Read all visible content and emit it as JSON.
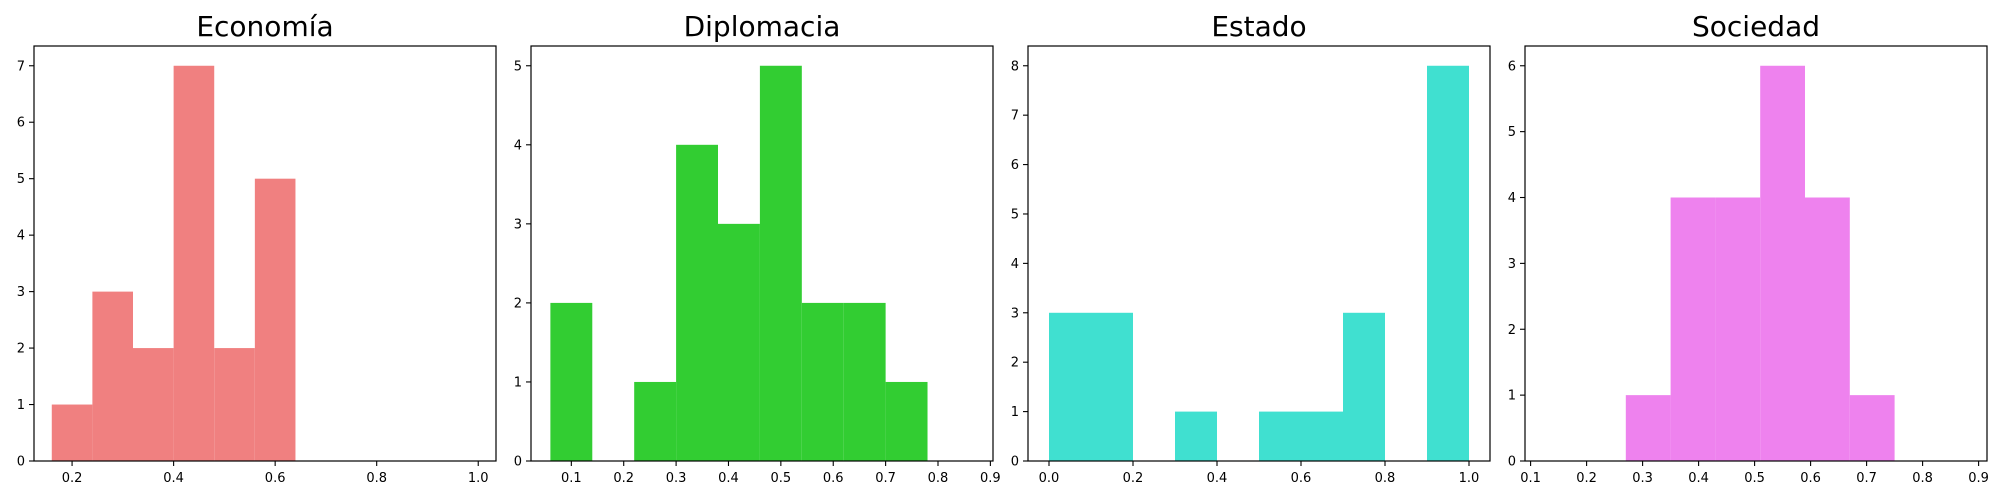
{
  "chart_data": [
    {
      "type": "bar",
      "title": "Economía",
      "color": "#F08080",
      "xlabel": "",
      "ylabel": "",
      "xlim": [
        0.125,
        1.035
      ],
      "ylim": [
        0,
        7.35
      ],
      "xticks": [
        0.2,
        0.4,
        0.6,
        0.8,
        1.0
      ],
      "xtick_labels": [
        "0.2",
        "0.4",
        "0.6",
        "0.8",
        "1.0"
      ],
      "yticks": [
        0,
        1,
        2,
        3,
        4,
        5,
        6,
        7
      ],
      "ytick_labels": [
        "0",
        "1",
        "2",
        "3",
        "4",
        "5",
        "6",
        "7"
      ],
      "bins": [
        {
          "x0": 0.16,
          "x1": 0.24,
          "count": 1
        },
        {
          "x0": 0.24,
          "x1": 0.32,
          "count": 3
        },
        {
          "x0": 0.32,
          "x1": 0.4,
          "count": 2
        },
        {
          "x0": 0.4,
          "x1": 0.48,
          "count": 7
        },
        {
          "x0": 0.48,
          "x1": 0.56,
          "count": 2
        },
        {
          "x0": 0.56,
          "x1": 0.64,
          "count": 5
        }
      ]
    },
    {
      "type": "bar",
      "title": "Diplomacia",
      "color": "#32CD32",
      "xlabel": "",
      "ylabel": "",
      "xlim": [
        0.023,
        0.905
      ],
      "ylim": [
        0,
        5.25
      ],
      "xticks": [
        0.1,
        0.2,
        0.3,
        0.4,
        0.5,
        0.6,
        0.7,
        0.8,
        0.9
      ],
      "xtick_labels": [
        "0.1",
        "0.2",
        "0.3",
        "0.4",
        "0.5",
        "0.6",
        "0.7",
        "0.8",
        "0.9"
      ],
      "yticks": [
        0,
        1,
        2,
        3,
        4,
        5
      ],
      "ytick_labels": [
        "0",
        "1",
        "2",
        "3",
        "4",
        "5"
      ],
      "bins": [
        {
          "x0": 0.06,
          "x1": 0.14,
          "count": 2
        },
        {
          "x0": 0.14,
          "x1": 0.22,
          "count": 0
        },
        {
          "x0": 0.22,
          "x1": 0.3,
          "count": 1
        },
        {
          "x0": 0.3,
          "x1": 0.38,
          "count": 4
        },
        {
          "x0": 0.38,
          "x1": 0.46,
          "count": 3
        },
        {
          "x0": 0.46,
          "x1": 0.54,
          "count": 5
        },
        {
          "x0": 0.54,
          "x1": 0.62,
          "count": 2
        },
        {
          "x0": 0.62,
          "x1": 0.7,
          "count": 2
        },
        {
          "x0": 0.7,
          "x1": 0.78,
          "count": 1
        }
      ]
    },
    {
      "type": "bar",
      "title": "Estado",
      "color": "#40E0D0",
      "xlabel": "",
      "ylabel": "",
      "xlim": [
        -0.05,
        1.05
      ],
      "ylim": [
        0,
        8.4
      ],
      "xticks": [
        0.0,
        0.2,
        0.4,
        0.6,
        0.8,
        1.0
      ],
      "xtick_labels": [
        "0.0",
        "0.2",
        "0.4",
        "0.6",
        "0.8",
        "1.0"
      ],
      "yticks": [
        0,
        1,
        2,
        3,
        4,
        5,
        6,
        7,
        8
      ],
      "ytick_labels": [
        "0",
        "1",
        "2",
        "3",
        "4",
        "5",
        "6",
        "7",
        "8"
      ],
      "bins": [
        {
          "x0": 0.0,
          "x1": 0.1,
          "count": 3
        },
        {
          "x0": 0.1,
          "x1": 0.2,
          "count": 3
        },
        {
          "x0": 0.2,
          "x1": 0.3,
          "count": 0
        },
        {
          "x0": 0.3,
          "x1": 0.4,
          "count": 1
        },
        {
          "x0": 0.4,
          "x1": 0.5,
          "count": 0
        },
        {
          "x0": 0.5,
          "x1": 0.6,
          "count": 1
        },
        {
          "x0": 0.6,
          "x1": 0.7,
          "count": 1
        },
        {
          "x0": 0.7,
          "x1": 0.8,
          "count": 3
        },
        {
          "x0": 0.8,
          "x1": 0.9,
          "count": 0
        },
        {
          "x0": 0.9,
          "x1": 1.0,
          "count": 8
        }
      ]
    },
    {
      "type": "bar",
      "title": "Sociedad",
      "color": "#EE82EE",
      "xlabel": "",
      "ylabel": "",
      "xlim": [
        0.09,
        0.915
      ],
      "ylim": [
        0,
        6.3
      ],
      "xticks": [
        0.1,
        0.2,
        0.3,
        0.4,
        0.5,
        0.6,
        0.7,
        0.8,
        0.9
      ],
      "xtick_labels": [
        "0.1",
        "0.2",
        "0.3",
        "0.4",
        "0.5",
        "0.6",
        "0.7",
        "0.8",
        "0.9"
      ],
      "yticks": [
        0,
        1,
        2,
        3,
        4,
        5,
        6
      ],
      "ytick_labels": [
        "0",
        "1",
        "2",
        "3",
        "4",
        "5",
        "6"
      ],
      "bins": [
        {
          "x0": 0.27,
          "x1": 0.35,
          "count": 1
        },
        {
          "x0": 0.35,
          "x1": 0.43,
          "count": 4
        },
        {
          "x0": 0.43,
          "x1": 0.51,
          "count": 4
        },
        {
          "x0": 0.51,
          "x1": 0.59,
          "count": 6
        },
        {
          "x0": 0.59,
          "x1": 0.67,
          "count": 4
        },
        {
          "x0": 0.67,
          "x1": 0.75,
          "count": 1
        }
      ]
    }
  ]
}
